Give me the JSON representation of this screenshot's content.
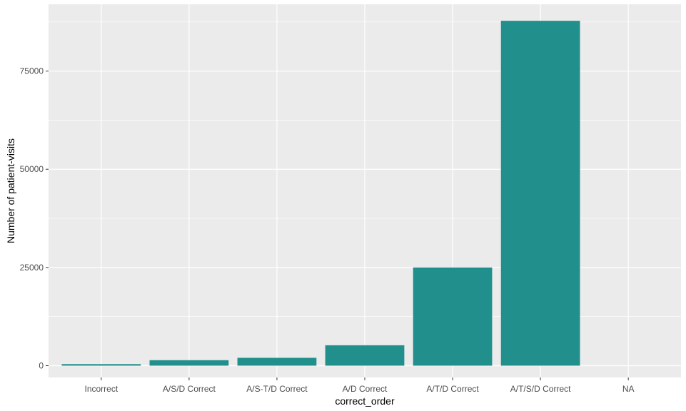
{
  "chart_data": {
    "type": "bar",
    "categories": [
      "Incorrect",
      "A/S/D Correct",
      "A/S-T/D Correct",
      "A/D Correct",
      "A/T/D Correct",
      "A/T/S/D Correct",
      "NA"
    ],
    "values": [
      400,
      1400,
      2000,
      5200,
      25000,
      87800,
      0
    ],
    "xlabel": "correct_order",
    "ylabel": "Number of patient-visits",
    "ylim": [
      -3000,
      92000
    ],
    "yticks": [
      0,
      25000,
      50000,
      75000
    ],
    "ytick_labels": [
      "0",
      "25000",
      "50000",
      "75000"
    ],
    "grid": true,
    "bar_color": "#21908C",
    "panel_background": "#EBEBEB",
    "grid_color": "#FFFFFF"
  }
}
